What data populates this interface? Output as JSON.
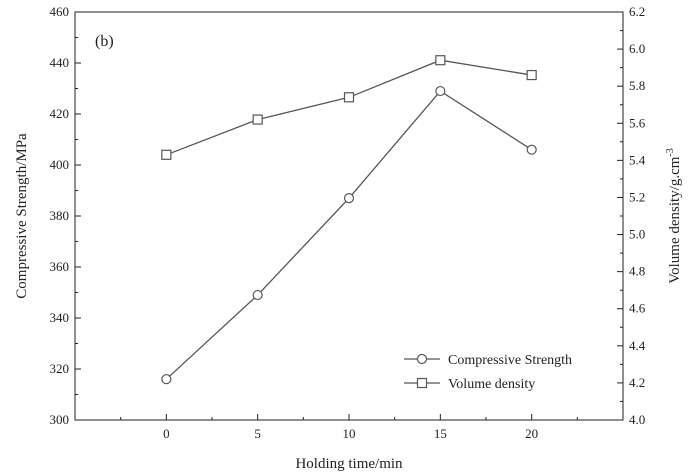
{
  "chart_data": {
    "type": "line",
    "panel_label": "(b)",
    "xlabel": "Holding time/min",
    "ylabel_left": "Compressive Strength/MPa",
    "ylabel_right": "Volume density/g.cm",
    "ylabel_right_sup": "-3",
    "x": [
      0,
      5,
      10,
      15,
      20
    ],
    "xlim": [
      -5,
      25
    ],
    "x_ticks": [
      "0",
      "5",
      "10",
      "15",
      "20"
    ],
    "ylim_left": [
      300,
      460
    ],
    "y_ticks_left": [
      "300",
      "320",
      "340",
      "360",
      "380",
      "400",
      "420",
      "440",
      "460"
    ],
    "ylim_right": [
      4.0,
      6.2
    ],
    "y_ticks_right": [
      "4.0",
      "4.2",
      "4.4",
      "4.6",
      "4.8",
      "5.0",
      "5.2",
      "5.4",
      "5.6",
      "5.8",
      "6.0",
      "6.2"
    ],
    "series": [
      {
        "name": "Compressive Strength",
        "axis": "left",
        "marker": "circle",
        "values": [
          316,
          349,
          387,
          429,
          406
        ]
      },
      {
        "name": "Volume density",
        "axis": "right",
        "marker": "square",
        "values": [
          5.43,
          5.62,
          5.74,
          5.94,
          5.86
        ]
      }
    ],
    "legend_position": "bottom-right",
    "grid": false,
    "line_color": "#555555"
  }
}
